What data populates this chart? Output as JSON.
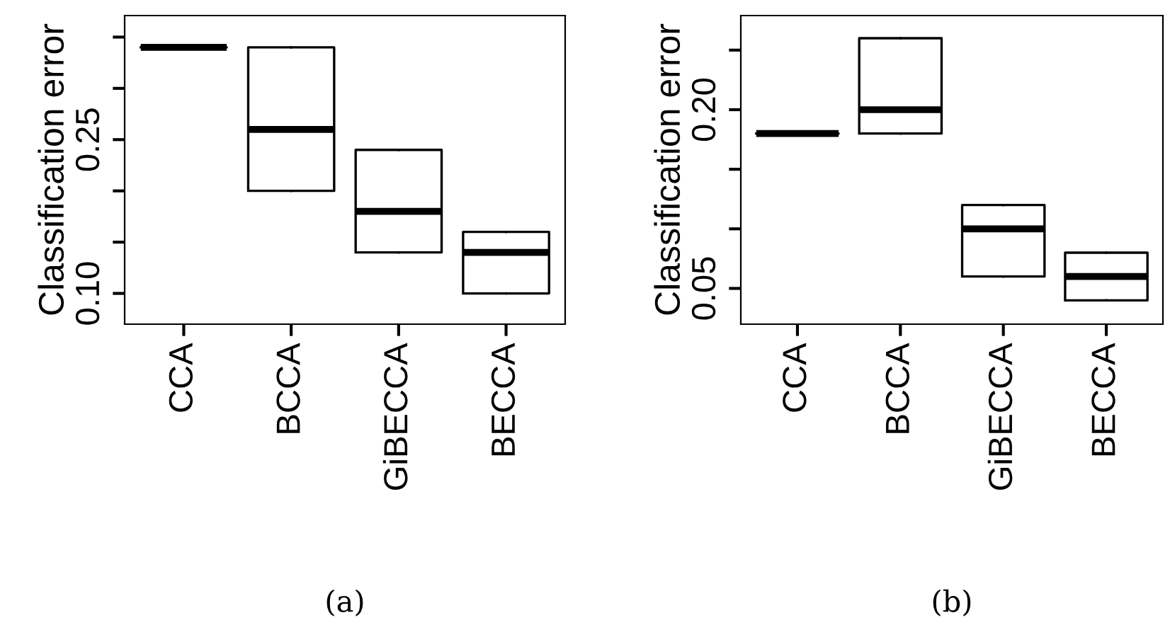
{
  "chart_data": [
    {
      "type": "box",
      "ylabel": "Classification error",
      "categories": [
        "CCA",
        "BCCA",
        "GiBECCA",
        "BECCA"
      ],
      "boxes": [
        {
          "low": 0.34,
          "q1": 0.34,
          "median": 0.34,
          "q3": 0.34,
          "high": 0.34
        },
        {
          "low": 0.2,
          "q1": 0.2,
          "median": 0.26,
          "q3": 0.34,
          "high": 0.34
        },
        {
          "low": 0.14,
          "q1": 0.14,
          "median": 0.18,
          "q3": 0.24,
          "high": 0.24
        },
        {
          "low": 0.1,
          "q1": 0.1,
          "median": 0.14,
          "q3": 0.16,
          "high": 0.16
        }
      ],
      "ylim": [
        0.07,
        0.371
      ],
      "yticks": [
        {
          "value": 0.1,
          "label": "0.10"
        },
        {
          "value": 0.15,
          "label": null
        },
        {
          "value": 0.2,
          "label": null
        },
        0.25,
        {
          "value": 0.3,
          "label": null
        },
        {
          "value": 0.35,
          "label": null
        }
      ],
      "grid": false,
      "annotations": [
        "(a)"
      ]
    },
    {
      "type": "box",
      "ylabel": "Classification error",
      "categories": [
        "CCA",
        "BCCA",
        "GiBECCA",
        "BECCA"
      ],
      "boxes": [
        {
          "low": 0.18,
          "q1": 0.18,
          "median": 0.18,
          "q3": 0.18,
          "high": 0.18
        },
        {
          "low": 0.18,
          "q1": 0.18,
          "median": 0.2,
          "q3": 0.26,
          "high": 0.26
        },
        {
          "low": 0.06,
          "q1": 0.06,
          "median": 0.1,
          "q3": 0.12,
          "high": 0.12
        },
        {
          "low": 0.04,
          "q1": 0.04,
          "median": 0.06,
          "q3": 0.08,
          "high": 0.08
        }
      ],
      "ylim": [
        0.02,
        0.279
      ],
      "yticks": [
        0.05,
        {
          "value": 0.1,
          "label": null
        },
        {
          "value": 0.15,
          "label": null
        },
        {
          "value": 0.2,
          "label": "0.20"
        },
        {
          "value": 0.25,
          "label": null
        }
      ],
      "grid": false,
      "annotations": [
        "(b)"
      ]
    }
  ]
}
